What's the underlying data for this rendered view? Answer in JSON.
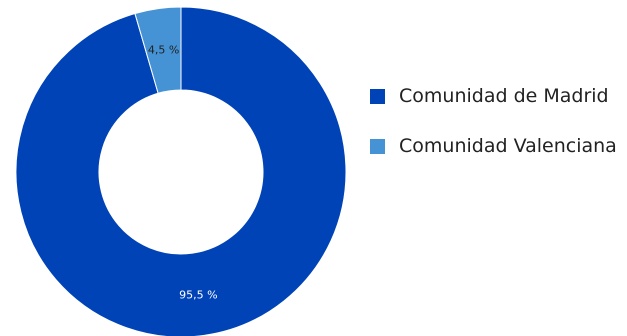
{
  "chart_data": {
    "type": "pie",
    "title": "",
    "categories": [
      "Comunidad de Madrid",
      "Comunidad Valenciana"
    ],
    "values": [
      95.5,
      4.5
    ],
    "data_labels": [
      "95,5 %",
      "4,5 %"
    ],
    "colors": [
      "#0043b7",
      "#4593d5"
    ],
    "donut": true,
    "legend_position": "right",
    "label_colors": [
      "#ffffff",
      "#222222"
    ]
  }
}
